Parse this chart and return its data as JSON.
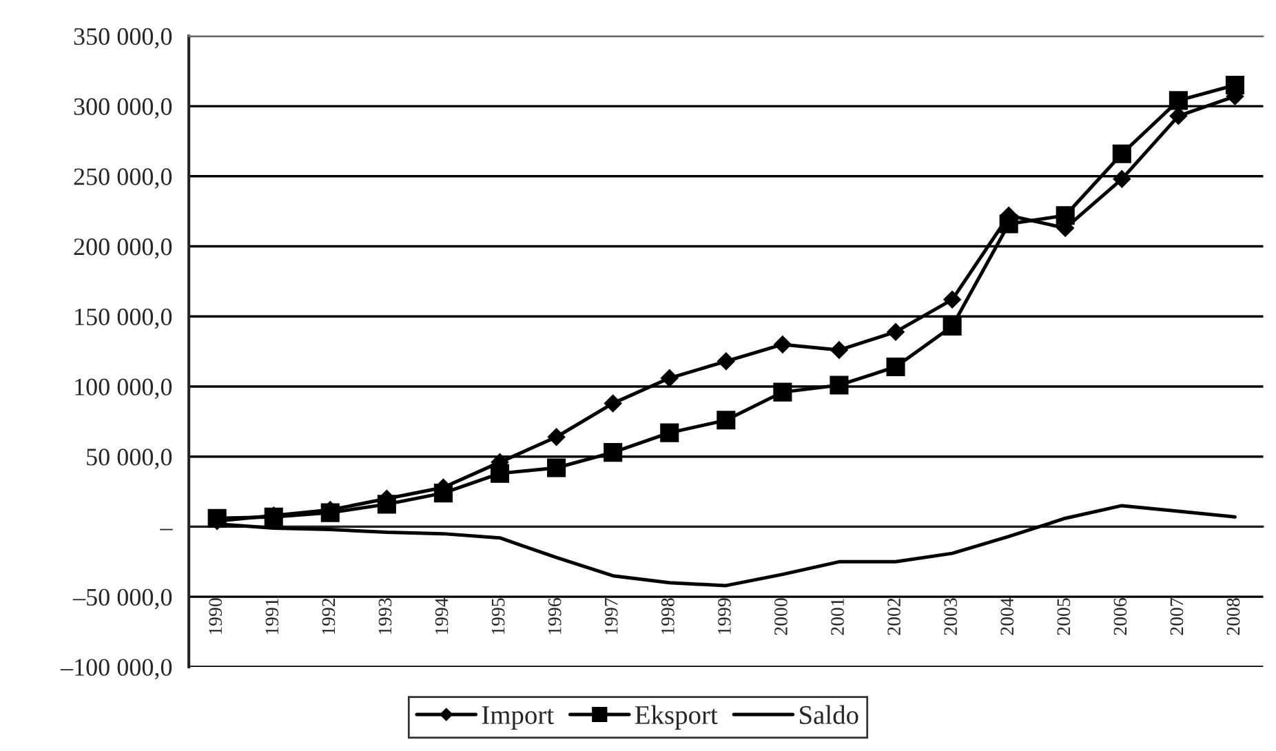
{
  "chart_data": {
    "type": "line",
    "categories": [
      "1990",
      "1991",
      "1992",
      "1993",
      "1994",
      "1995",
      "1996",
      "1997",
      "1998",
      "1999",
      "2000",
      "2001",
      "2002",
      "2003",
      "2004",
      "2005",
      "2006",
      "2007",
      "2008"
    ],
    "series": [
      {
        "name": "Import",
        "color": "#000000",
        "marker": "diamond",
        "values": [
          4000,
          8000,
          12000,
          20000,
          28000,
          46000,
          64000,
          88000,
          106000,
          118000,
          130000,
          126000,
          139000,
          162000,
          222000,
          213000,
          248000,
          293000,
          307000
        ]
      },
      {
        "name": "Eksport",
        "color": "#000000",
        "marker": "square",
        "values": [
          6000,
          7000,
          10000,
          16000,
          24000,
          38000,
          42000,
          53000,
          67000,
          76000,
          96000,
          101000,
          114000,
          143000,
          216000,
          222000,
          266000,
          304000,
          315000
        ]
      },
      {
        "name": "Saldo",
        "color": "#000000",
        "marker": "none",
        "values": [
          2000,
          -1000,
          -2000,
          -4000,
          -5000,
          -8000,
          -22000,
          -35000,
          -40000,
          -42000,
          -34000,
          -25000,
          -25000,
          -19000,
          -7000,
          6000,
          15000,
          11000,
          7000
        ]
      }
    ],
    "ylim": [
      -100000,
      350000
    ],
    "yticks": [
      {
        "value": -100000,
        "label": "–100 000,0"
      },
      {
        "value": -50000,
        "label": "–50 000,0"
      },
      {
        "value": 0,
        "label": "–"
      },
      {
        "value": 50000,
        "label": "50 000,0"
      },
      {
        "value": 100000,
        "label": "100 000,0"
      },
      {
        "value": 150000,
        "label": "150 000,0"
      },
      {
        "value": 200000,
        "label": "200 000,0"
      },
      {
        "value": 250000,
        "label": "250 000,0"
      },
      {
        "value": 300000,
        "label": "300 000,0"
      },
      {
        "value": 350000,
        "label": "350 000,0"
      }
    ],
    "grid": "y",
    "legend": "bottom",
    "line_style": "solid"
  }
}
